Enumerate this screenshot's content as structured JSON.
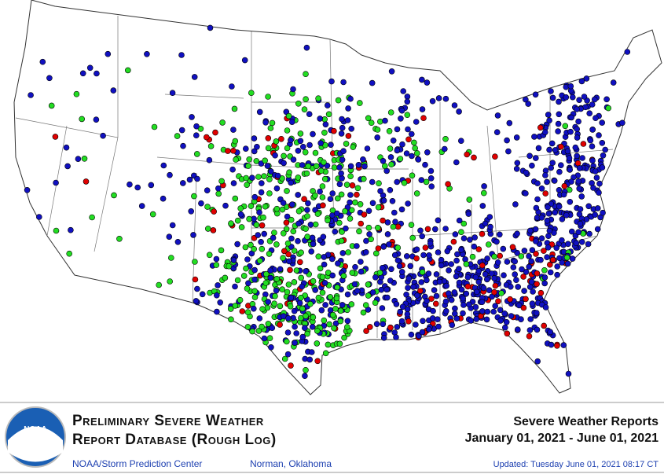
{
  "map": {
    "logo": "NOAA"
  },
  "footer": {
    "title_line1": "Preliminary Severe Weather",
    "title_line2": "Report Database (Rough Log)",
    "agency": "NOAA/Storm Prediction Center",
    "location": "Norman, Oklahoma",
    "heading": "Severe Weather Reports",
    "date_range": "January 01, 2021 - June 01, 2021",
    "updated": "Updated:  Tuesday June 01, 2021 08:17 CT"
  }
}
